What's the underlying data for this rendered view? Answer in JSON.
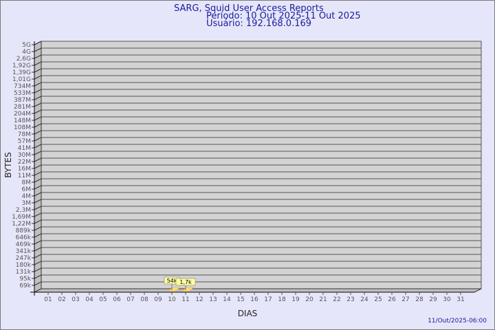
{
  "header": {
    "title": "SARG, Squid User Access Reports",
    "period": "Período: 10 Out 2025-11 Out 2025",
    "user": "Usuário: 192.168.0.169"
  },
  "footer": {
    "timestamp": "11/Out/2025-06:00"
  },
  "colors": {
    "background": "#e6e6fa",
    "wall": "#d3d3d3",
    "side": "#c0c0c0",
    "bar": "#ffd878",
    "label_box": "#ffffa0",
    "title": "#1a1a9c"
  },
  "chart_data": {
    "type": "bar",
    "title": "SARG, Squid User Access Reports",
    "xlabel": "DIAS",
    "ylabel": "BYTES",
    "y_scale": "log",
    "grid": true,
    "categories": [
      "01",
      "02",
      "03",
      "04",
      "05",
      "06",
      "07",
      "08",
      "09",
      "10",
      "11",
      "12",
      "13",
      "14",
      "15",
      "16",
      "17",
      "18",
      "19",
      "20",
      "21",
      "22",
      "23",
      "24",
      "25",
      "26",
      "27",
      "28",
      "29",
      "30",
      "31"
    ],
    "yticks": [
      "5G",
      "4G",
      "2,6G",
      "1,92G",
      "1,39G",
      "1,01G",
      "734M",
      "533M",
      "387M",
      "281M",
      "204M",
      "148M",
      "108M",
      "78M",
      "57M",
      "41M",
      "30M",
      "22M",
      "16M",
      "11M",
      "8M",
      "6M",
      "4M",
      "3M",
      "2,3M",
      "1,69M",
      "1,22M",
      "889k",
      "646k",
      "469k",
      "341k",
      "247k",
      "180k",
      "131k",
      "95k",
      "69k"
    ],
    "bars": [
      {
        "day": "10",
        "value": 54000,
        "label": "54k"
      },
      {
        "day": "11",
        "value": 1700,
        "label": "1,7k"
      }
    ]
  }
}
